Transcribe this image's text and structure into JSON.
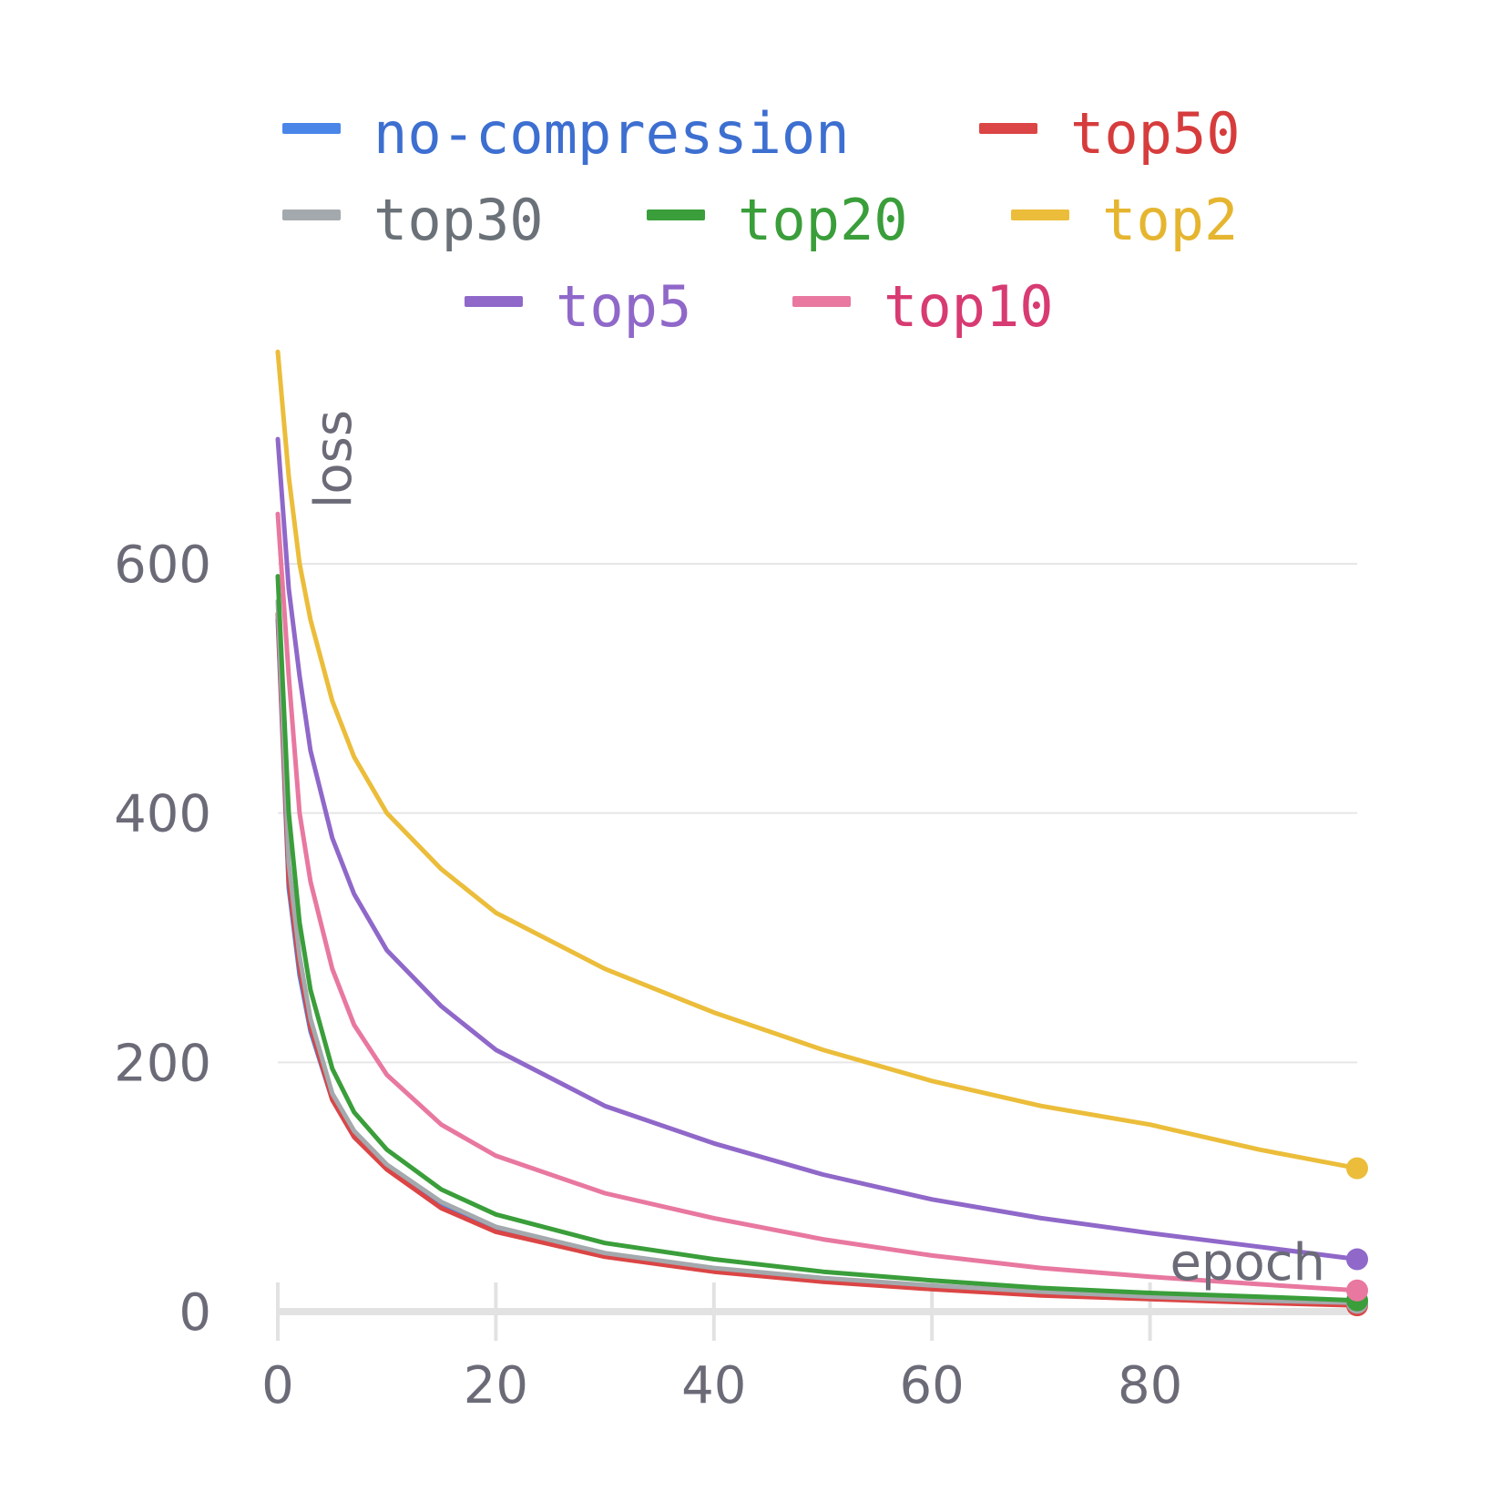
{
  "chart_data": {
    "type": "line",
    "title": "",
    "xlabel": "epoch",
    "ylabel": "loss",
    "xlim": [
      0,
      99
    ],
    "ylim": [
      0,
      760
    ],
    "x_ticks": [
      0,
      20,
      40,
      60,
      80
    ],
    "y_ticks": [
      0,
      200,
      400,
      600
    ],
    "grid": "horizontal",
    "legend_position": "top",
    "x": [
      0,
      1,
      2,
      3,
      5,
      7,
      10,
      15,
      20,
      30,
      40,
      50,
      60,
      70,
      80,
      90,
      99
    ],
    "series": [
      {
        "name": "no-compression",
        "color": "#4a86e8",
        "text_color": "#3d6fd1",
        "values": [
          555,
          340,
          270,
          225,
          170,
          140,
          115,
          85,
          65,
          45,
          33,
          26,
          20,
          15,
          11,
          8,
          6
        ]
      },
      {
        "name": "top50",
        "color": "#db4545",
        "text_color": "#d63c3c",
        "values": [
          560,
          345,
          275,
          228,
          170,
          140,
          114,
          83,
          64,
          44,
          32,
          24,
          18,
          13,
          10,
          7,
          5
        ]
      },
      {
        "name": "top30",
        "color": "#a4a9ad",
        "text_color": "#6b7178",
        "values": [
          570,
          360,
          285,
          235,
          175,
          145,
          118,
          88,
          68,
          47,
          35,
          27,
          21,
          16,
          12,
          9,
          7
        ]
      },
      {
        "name": "top20",
        "color": "#3a9e3a",
        "text_color": "#3a9e3a",
        "values": [
          590,
          400,
          312,
          258,
          195,
          160,
          130,
          98,
          78,
          55,
          42,
          32,
          25,
          19,
          15,
          12,
          9
        ]
      },
      {
        "name": "top2",
        "color": "#ebbd3a",
        "text_color": "#e6b530",
        "values": [
          770,
          670,
          600,
          555,
          490,
          445,
          400,
          355,
          320,
          275,
          240,
          210,
          185,
          165,
          150,
          130,
          115
        ]
      },
      {
        "name": "top5",
        "color": "#8f68c9",
        "text_color": "#8f68c9",
        "values": [
          700,
          580,
          510,
          450,
          380,
          335,
          290,
          245,
          210,
          165,
          135,
          110,
          90,
          75,
          63,
          52,
          42
        ]
      },
      {
        "name": "top10",
        "color": "#e878a0",
        "text_color": "#d83a72",
        "values": [
          640,
          510,
          400,
          345,
          275,
          230,
          190,
          150,
          125,
          95,
          75,
          58,
          45,
          35,
          28,
          22,
          17
        ]
      }
    ]
  }
}
